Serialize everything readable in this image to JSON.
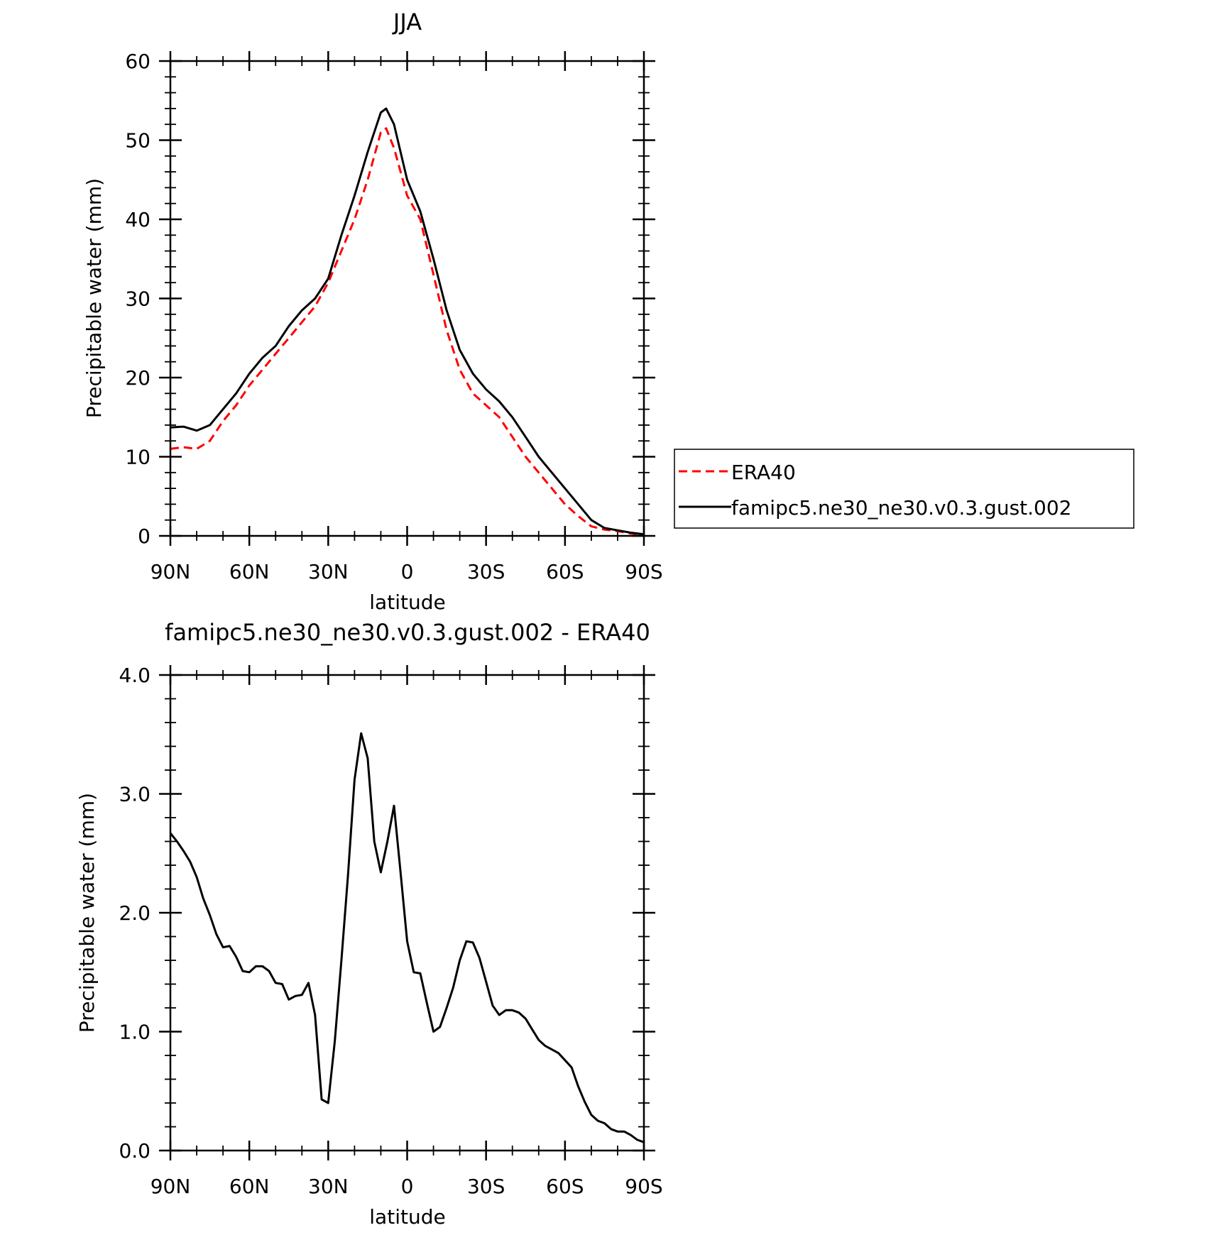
{
  "chart_data": [
    {
      "type": "line",
      "title": "JJA",
      "xlabel": "latitude",
      "ylabel": "Precipitable water (mm)",
      "xlim": [
        -90,
        90
      ],
      "ylim": [
        0,
        60
      ],
      "x_ticks": [
        -90,
        -60,
        -30,
        0,
        30,
        60,
        90
      ],
      "x_tick_labels": [
        "90N",
        "60N",
        "30N",
        "0",
        "30S",
        "60S",
        "90S"
      ],
      "y_ticks": [
        0,
        10,
        20,
        30,
        40,
        50,
        60
      ],
      "y_tick_labels": [
        "0",
        "10",
        "20",
        "30",
        "40",
        "50",
        "60"
      ],
      "grid": false,
      "legend_position": "right",
      "series": [
        {
          "name": "ERA40",
          "color": "#ff0000",
          "dash": "dashed",
          "x": [
            -90,
            -85,
            -80,
            -75,
            -70,
            -65,
            -60,
            -55,
            -50,
            -45,
            -40,
            -35,
            -30,
            -25,
            -20,
            -15,
            -10,
            -8,
            -5,
            0,
            5,
            10,
            15,
            20,
            25,
            30,
            35,
            40,
            45,
            50,
            55,
            60,
            65,
            70,
            75,
            80,
            85,
            90
          ],
          "y": [
            11,
            11.2,
            11,
            12,
            14.5,
            16.5,
            19,
            21,
            23,
            25,
            27,
            29,
            32,
            36,
            40,
            45,
            51,
            51.5,
            49,
            43,
            40,
            33,
            26,
            21,
            18,
            16.5,
            15,
            12.5,
            10,
            8,
            6,
            4,
            2.5,
            1.2,
            0.8,
            0.6,
            0.3,
            0.2
          ]
        },
        {
          "name": "famipc5.ne30_ne30.v0.3.gust.002",
          "color": "#000000",
          "dash": "solid",
          "x": [
            -90,
            -85,
            -80,
            -75,
            -70,
            -65,
            -60,
            -55,
            -50,
            -45,
            -40,
            -35,
            -30,
            -25,
            -20,
            -15,
            -10,
            -8,
            -5,
            0,
            5,
            10,
            15,
            20,
            25,
            30,
            35,
            40,
            45,
            50,
            55,
            60,
            65,
            70,
            75,
            80,
            85,
            90
          ],
          "y": [
            13.7,
            13.8,
            13.3,
            14,
            16,
            18,
            20.5,
            22.5,
            24,
            26.5,
            28.5,
            30,
            32.5,
            38,
            43,
            48.5,
            53.5,
            54,
            52,
            45,
            41,
            35,
            28.5,
            23.5,
            20.5,
            18.5,
            17,
            15,
            12.5,
            10,
            8,
            6,
            4,
            2,
            1,
            0.7,
            0.4,
            0.2
          ]
        }
      ]
    },
    {
      "type": "line",
      "title": "famipc5.ne30_ne30.v0.3.gust.002 - ERA40",
      "xlabel": "latitude",
      "ylabel": "Precipitable water (mm)",
      "xlim": [
        -90,
        90
      ],
      "ylim": [
        0,
        4
      ],
      "x_ticks": [
        -90,
        -60,
        -30,
        0,
        30,
        60,
        90
      ],
      "x_tick_labels": [
        "90N",
        "60N",
        "30N",
        "0",
        "30S",
        "60S",
        "90S"
      ],
      "y_ticks": [
        0,
        1,
        2,
        3,
        4
      ],
      "y_tick_labels": [
        "0.0",
        "1.0",
        "2.0",
        "3.0",
        "4.0"
      ],
      "grid": false,
      "series": [
        {
          "color": "#000000",
          "dash": "solid",
          "x": [
            -90,
            -87.5,
            -85,
            -82.5,
            -80,
            -77.5,
            -75,
            -72.5,
            -70,
            -67.5,
            -65,
            -62.5,
            -60,
            -57.5,
            -55,
            -52.5,
            -50,
            -47.5,
            -45,
            -42.5,
            -40,
            -37.5,
            -35,
            -32.5,
            -30,
            -27.5,
            -25,
            -22.5,
            -20,
            -17.5,
            -15,
            -12.5,
            -10,
            -7.5,
            -5,
            -2.5,
            0,
            2.5,
            5,
            7.5,
            10,
            12.5,
            15,
            17.5,
            20,
            22.5,
            25,
            27.5,
            30,
            32.5,
            35,
            37.5,
            40,
            42.5,
            45,
            47.5,
            50,
            52.5,
            55,
            57.5,
            60,
            62.5,
            65,
            67.5,
            70,
            72.5,
            75,
            77.5,
            80,
            82.5,
            85,
            87.5,
            90
          ],
          "y": [
            2.67,
            2.6,
            2.52,
            2.43,
            2.3,
            2.12,
            1.98,
            1.82,
            1.71,
            1.72,
            1.63,
            1.51,
            1.5,
            1.55,
            1.55,
            1.51,
            1.41,
            1.4,
            1.27,
            1.3,
            1.31,
            1.41,
            1.14,
            0.43,
            0.4,
            0.92,
            1.6,
            2.31,
            3.12,
            3.51,
            3.3,
            2.6,
            2.34,
            2.6,
            2.9,
            2.34,
            1.76,
            1.5,
            1.49,
            1.24,
            1,
            1.04,
            1.2,
            1.37,
            1.6,
            1.76,
            1.75,
            1.62,
            1.42,
            1.22,
            1.14,
            1.18,
            1.18,
            1.16,
            1.11,
            1.02,
            0.93,
            0.88,
            0.85,
            0.82,
            0.76,
            0.7,
            0.54,
            0.41,
            0.3,
            0.25,
            0.23,
            0.18,
            0.16,
            0.16,
            0.13,
            0.09,
            0.07
          ]
        }
      ]
    }
  ]
}
